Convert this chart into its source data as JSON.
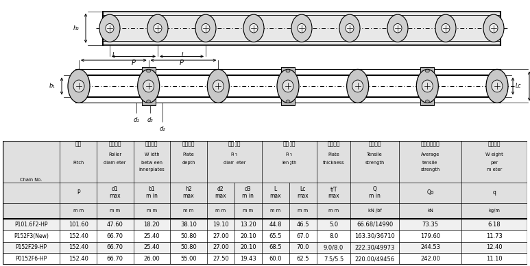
{
  "chain_no": [
    "P101.6F2-HP",
    "P152F3(New)",
    "P152F29-HP",
    "P0152F6-HP"
  ],
  "table_data": [
    [
      "101.60",
      "47.60",
      "18.20",
      "38.10",
      "19.10",
      "13.20",
      "44.8",
      "46.5",
      "5.0",
      "66.68/14990",
      "73.35",
      "6.18"
    ],
    [
      "152.40",
      "66.70",
      "25.40",
      "50.80",
      "27.00",
      "20.10",
      "65.5",
      "67.0",
      "8.0",
      "163.30/36710",
      "179.60",
      "11.73"
    ],
    [
      "152.40",
      "66.70",
      "25.40",
      "50.80",
      "27.00",
      "20.10",
      "68.5",
      "70.0",
      "9.0/8.0",
      "222.30/49973",
      "244.53",
      "12.40"
    ],
    [
      "152.40",
      "66.70",
      "26.00",
      "55.00",
      "27.50",
      "19.43",
      "60.0",
      "62.5",
      "7.5/5.5",
      "220.00/49456",
      "242.00",
      "11.10"
    ]
  ],
  "header_cn": [
    "节距",
    "滚子直径",
    "内节内宽",
    "链板高度",
    "销轴直径",
    "",
    "销轴长度",
    "",
    "链板厚度",
    "抗拉强度",
    "平均抗拉强度",
    "每米长重"
  ],
  "header_en1": [
    "",
    "Roller",
    "W idth",
    "Plate",
    "Pin",
    "",
    "Pin",
    "",
    "Plate",
    "Tensile",
    "Average",
    "W eight"
  ],
  "header_en2": [
    "Pitch",
    "diam eter",
    "betw een",
    "depth",
    "diam eter",
    "",
    "length",
    "",
    "thickness",
    "strength",
    "tensile",
    "per"
  ],
  "header_en3": [
    "",
    "",
    "innerplates",
    "",
    "",
    "",
    "",
    "",
    "",
    "",
    "strength",
    "m eter"
  ],
  "sym_row": [
    "P",
    "d1\nmax",
    "b1\nm in",
    "h2\nmax",
    "d2\nmax",
    "d3\nm in",
    "L\nmax",
    "Lc\nmax",
    "t/T\nmax",
    "Q\nm in",
    "Qo",
    "q"
  ],
  "unit_row": [
    "m m",
    "m m",
    "m m",
    "m m",
    "m m",
    "m m",
    "m m",
    "m m",
    "m m",
    "kN /bf",
    "kN",
    "kg/m"
  ],
  "bg_color": "#ffffff",
  "header_bg": "#e0e0e0",
  "sym_bg": "#e0e0e0",
  "unit_bg": "#e0e0e0",
  "data_row_colors": [
    "#f0f0f0",
    "#ffffff",
    "#f0f0f0",
    "#ffffff"
  ],
  "lc_color": "#000000"
}
